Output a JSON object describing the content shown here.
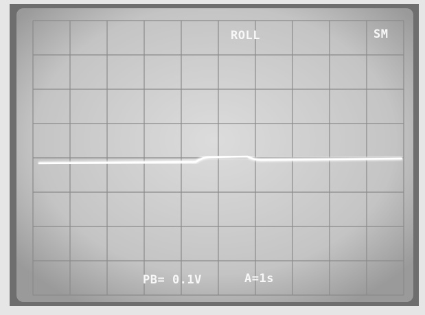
{
  "screen": {
    "mode": "ROLL",
    "status": "SM",
    "scale": "PB= 0.1V",
    "timebase": "A=1s"
  }
}
